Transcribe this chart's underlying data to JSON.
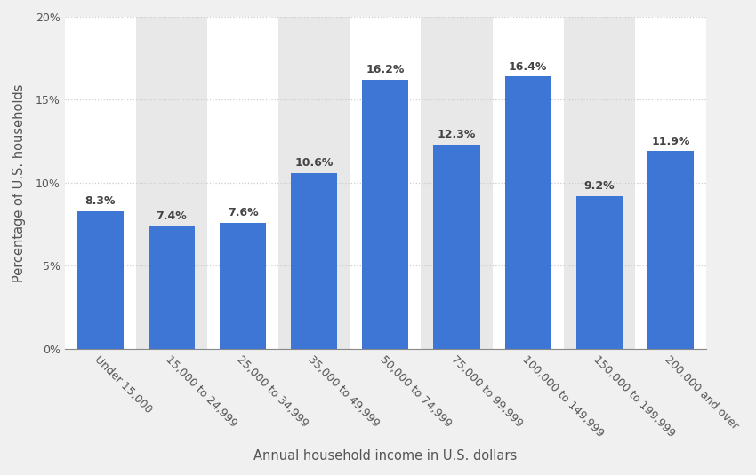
{
  "categories": [
    "Under 15,000",
    "15,000 to 24,999",
    "25,000 to 34,999",
    "35,000 to 49,999",
    "50,000 to 74,999",
    "75,000 to 99,999",
    "100,000 to 149,999",
    "150,000 to 199,999",
    "200,000 and over"
  ],
  "values": [
    8.3,
    7.4,
    7.6,
    10.6,
    16.2,
    12.3,
    16.4,
    9.2,
    11.9
  ],
  "bar_color": "#3d76d4",
  "background_color": "#f0f0f0",
  "plot_bg_color": "#ffffff",
  "alt_col_bg": "#e8e8e8",
  "xlabel": "Annual household income in U.S. dollars",
  "ylabel": "Percentage of U.S. households",
  "ylim": [
    0,
    20
  ],
  "yticks": [
    0,
    5,
    10,
    15,
    20
  ],
  "ytick_labels": [
    "0%",
    "5%",
    "10%",
    "15%",
    "20%"
  ],
  "axis_label_fontsize": 10.5,
  "tick_fontsize": 9,
  "bar_label_fontsize": 9,
  "bar_label_color": "#444444",
  "grid_color": "#cccccc"
}
